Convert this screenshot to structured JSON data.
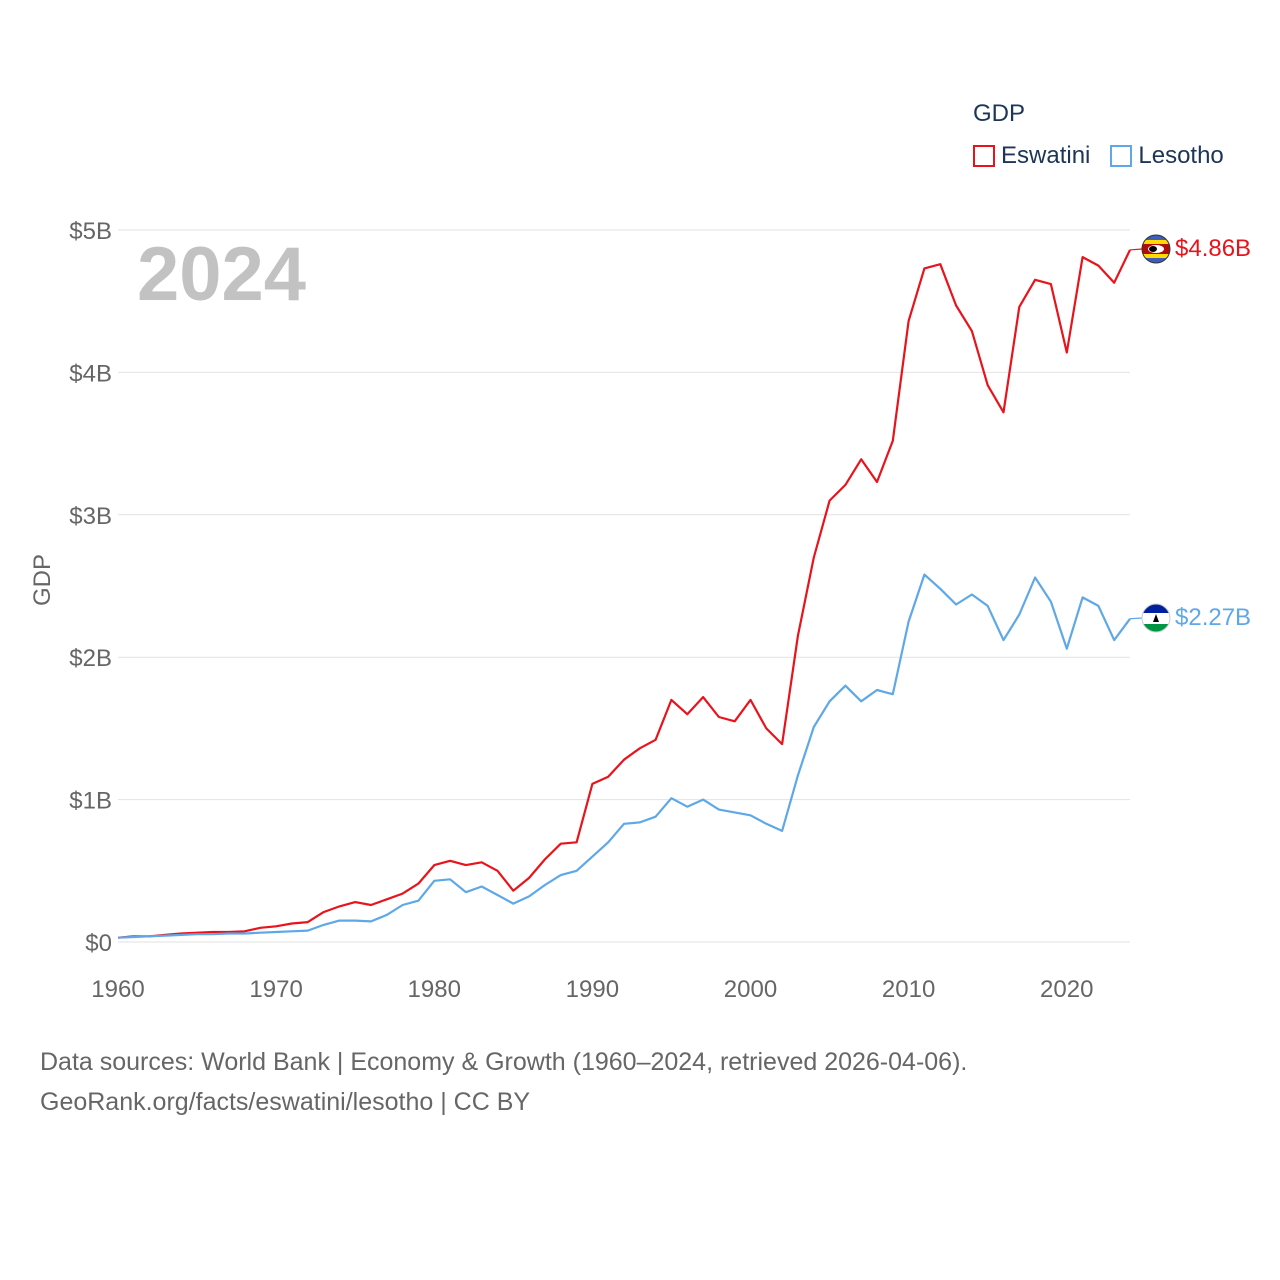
{
  "legend": {
    "title": "GDP",
    "items": [
      {
        "name": "Eswatini",
        "color": "#e8131b"
      },
      {
        "name": "Lesotho",
        "color": "#5ea8e8"
      }
    ]
  },
  "watermark_year": "2024",
  "footer": {
    "line1": "Data sources: World Bank | Economy & Growth (1960–2024, retrieved 2026-04-06).",
    "line2": "GeoRank.org/facts/eswatini/lesotho | CC BY"
  },
  "chart_data": {
    "type": "line",
    "title": "",
    "xlabel": "",
    "ylabel": "GDP",
    "xlim": [
      1960,
      2024
    ],
    "ylim": [
      0,
      5
    ],
    "x_ticks": [
      1960,
      1970,
      1980,
      1990,
      2000,
      2010,
      2020
    ],
    "x_tick_labels": [
      "1960",
      "1970",
      "1980",
      "1990",
      "2000",
      "2010",
      "2020"
    ],
    "y_ticks": [
      0,
      1,
      2,
      3,
      4,
      5
    ],
    "y_tick_labels": [
      "$0",
      "$1B",
      "$2B",
      "$3B",
      "$4B",
      "$5B"
    ],
    "grid": true,
    "legend_position": "top-right",
    "x": [
      1960,
      1961,
      1962,
      1963,
      1964,
      1965,
      1966,
      1967,
      1968,
      1969,
      1970,
      1971,
      1972,
      1973,
      1974,
      1975,
      1976,
      1977,
      1978,
      1979,
      1980,
      1981,
      1982,
      1983,
      1984,
      1985,
      1986,
      1987,
      1988,
      1989,
      1990,
      1991,
      1992,
      1993,
      1994,
      1995,
      1996,
      1997,
      1998,
      1999,
      2000,
      2001,
      2002,
      2003,
      2004,
      2005,
      2006,
      2007,
      2008,
      2009,
      2010,
      2011,
      2012,
      2013,
      2014,
      2015,
      2016,
      2017,
      2018,
      2019,
      2020,
      2021,
      2022,
      2023,
      2024
    ],
    "series": [
      {
        "name": "Eswatini",
        "color": "#e8131b",
        "end_label": "$4.86B",
        "values": [
          0.03,
          0.04,
          0.04,
          0.05,
          0.06,
          0.065,
          0.07,
          0.07,
          0.075,
          0.1,
          0.11,
          0.13,
          0.14,
          0.21,
          0.25,
          0.28,
          0.26,
          0.3,
          0.34,
          0.41,
          0.54,
          0.57,
          0.54,
          0.56,
          0.5,
          0.36,
          0.45,
          0.58,
          0.69,
          0.7,
          1.11,
          1.16,
          1.28,
          1.36,
          1.42,
          1.7,
          1.6,
          1.72,
          1.58,
          1.55,
          1.7,
          1.5,
          1.39,
          2.15,
          2.7,
          3.1,
          3.21,
          3.39,
          3.23,
          3.52,
          4.36,
          4.73,
          4.76,
          4.47,
          4.29,
          3.91,
          3.72,
          4.46,
          4.65,
          4.62,
          4.14,
          4.81,
          4.75,
          4.63,
          4.86
        ]
      },
      {
        "name": "Lesotho",
        "color": "#5ea8e8",
        "end_label": "$2.27B",
        "values": [
          0.03,
          0.035,
          0.04,
          0.045,
          0.05,
          0.055,
          0.055,
          0.06,
          0.06,
          0.065,
          0.07,
          0.075,
          0.08,
          0.12,
          0.15,
          0.15,
          0.145,
          0.19,
          0.26,
          0.29,
          0.43,
          0.44,
          0.35,
          0.39,
          0.33,
          0.27,
          0.32,
          0.4,
          0.47,
          0.5,
          0.6,
          0.7,
          0.83,
          0.84,
          0.88,
          1.01,
          0.95,
          1.0,
          0.93,
          0.91,
          0.89,
          0.83,
          0.78,
          1.17,
          1.51,
          1.69,
          1.8,
          1.69,
          1.77,
          1.74,
          2.25,
          2.58,
          2.48,
          2.37,
          2.44,
          2.36,
          2.12,
          2.3,
          2.56,
          2.39,
          2.06,
          2.42,
          2.36,
          2.12,
          2.27
        ]
      }
    ]
  }
}
